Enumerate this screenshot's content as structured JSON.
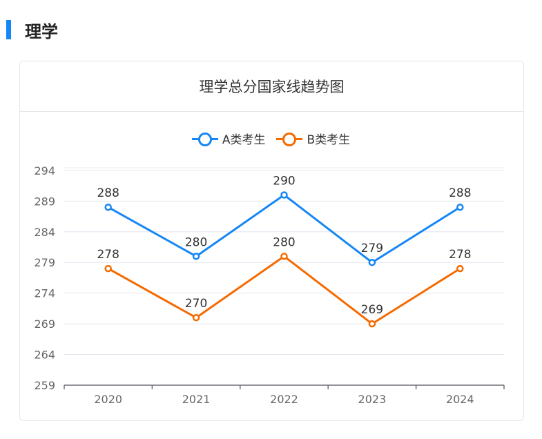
{
  "section": {
    "title": "理学",
    "accent_color": "#1486f5"
  },
  "chart_data": {
    "type": "line",
    "title": "理学总分国家线趋势图",
    "categories": [
      "2020",
      "2021",
      "2022",
      "2023",
      "2024"
    ],
    "series": [
      {
        "name": "A类考生",
        "color": "#1486f5",
        "values": [
          288,
          280,
          290,
          279,
          288
        ]
      },
      {
        "name": "B类考生",
        "color": "#f56a00",
        "values": [
          278,
          270,
          280,
          269,
          278
        ]
      }
    ],
    "yticks": [
      259,
      264,
      269,
      274,
      279,
      284,
      289,
      294
    ],
    "ylim": [
      259,
      295
    ],
    "xlabel": "",
    "ylabel": "",
    "legend_position": "top-center",
    "grid": true
  }
}
